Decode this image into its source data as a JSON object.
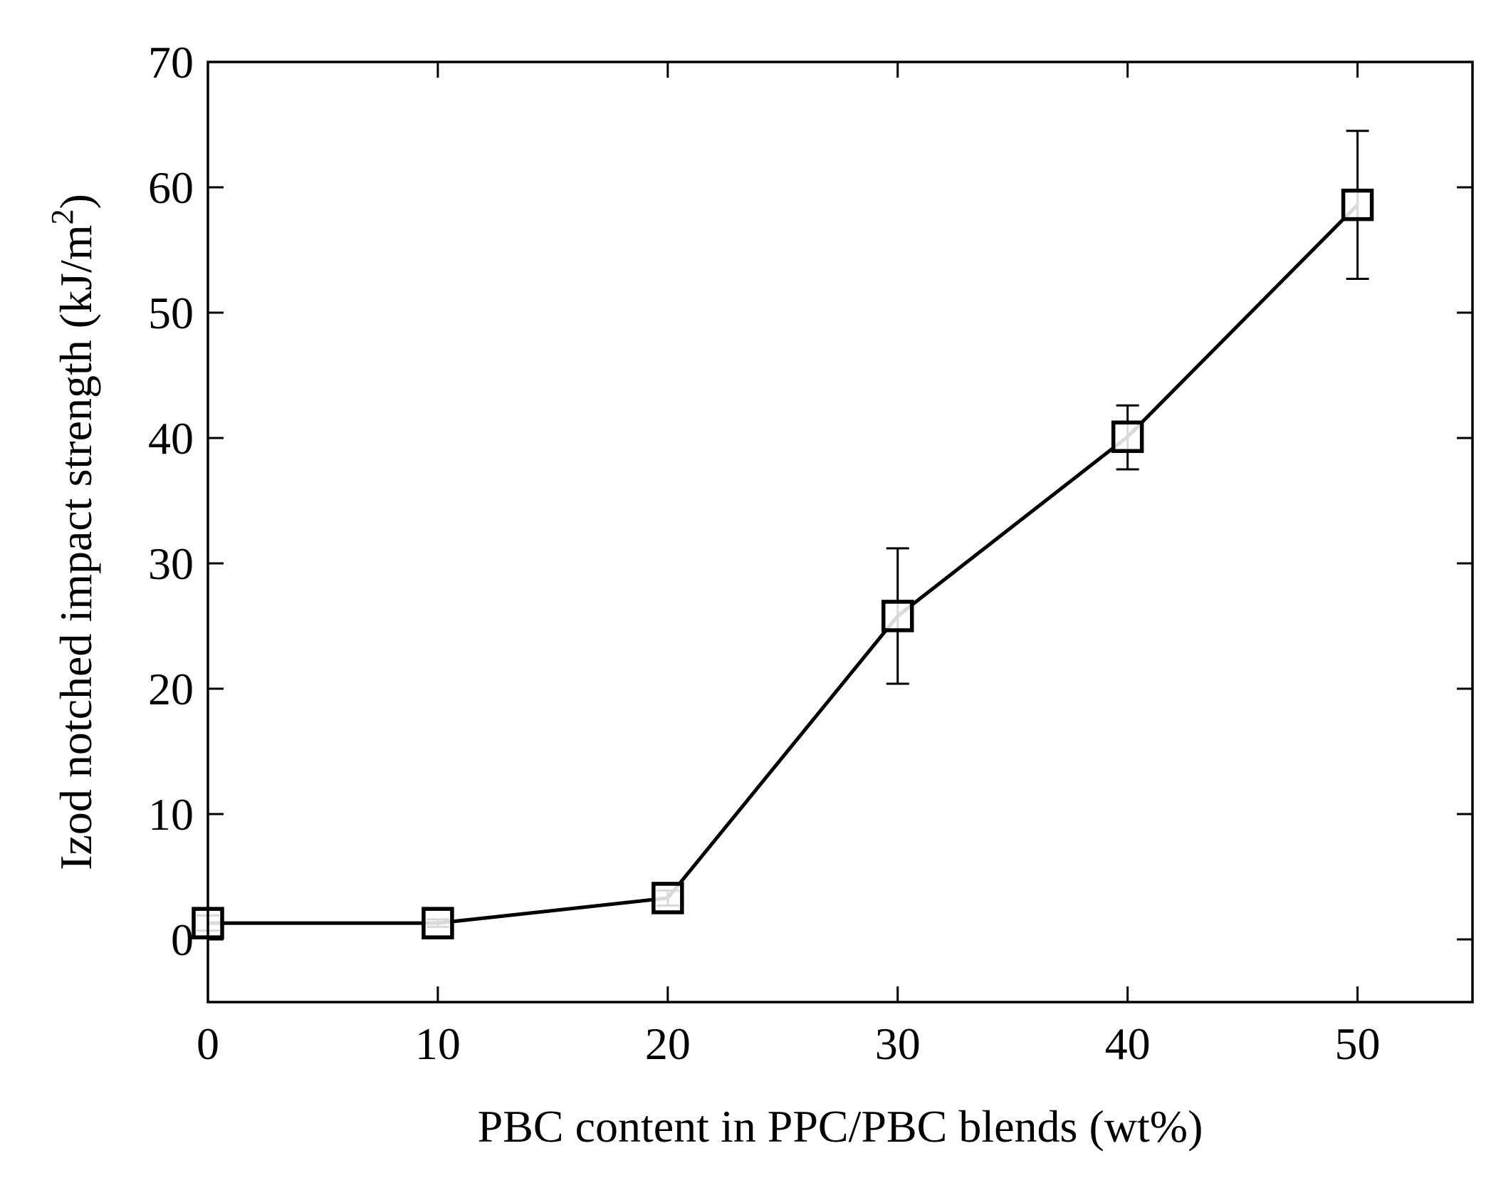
{
  "chart_data": {
    "type": "line",
    "title": "",
    "xlabel": "PBC content in PPC/PBC blends (wt%)",
    "ylabel_main": "Izod notched impact strength (kJ/m",
    "ylabel_sup": "2",
    "ylabel_end": ")",
    "xlim": [
      0,
      55
    ],
    "ylim": [
      -5,
      70
    ],
    "xticks": [
      0,
      10,
      20,
      30,
      40,
      50
    ],
    "yticks": [
      0,
      10,
      20,
      30,
      40,
      50,
      60,
      70
    ],
    "grid": false,
    "series": [
      {
        "name": "Izod notched impact strength",
        "marker": "open-square",
        "x": [
          0,
          10,
          20,
          30,
          40,
          50
        ],
        "y": [
          1.3,
          1.3,
          3.3,
          25.8,
          40.1,
          58.6
        ],
        "err_low": [
          0.6,
          0.3,
          0.6,
          5.4,
          2.6,
          5.9
        ],
        "err_high": [
          0.6,
          0.3,
          0.6,
          5.4,
          2.5,
          5.9
        ]
      }
    ]
  }
}
